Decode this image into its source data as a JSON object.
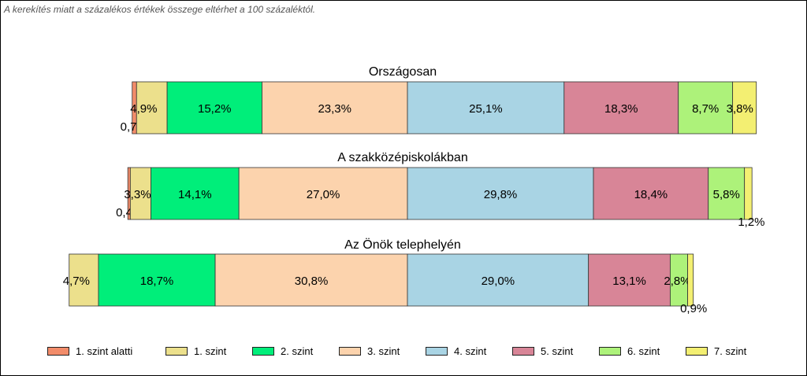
{
  "note": "A kerekítés miatt a  százalékos értékek összege eltérhet a 100 százaléktól.",
  "chart_data": {
    "type": "bar",
    "orientation": "horizontal-stacked",
    "categories": [
      "1. szint alatti",
      "1. szint",
      "2. szint",
      "3. szint",
      "4. szint",
      "5. szint",
      "6. szint",
      "7. szint"
    ],
    "colors": [
      "#f28c6a",
      "#ece08c",
      "#00ee7a",
      "#fcd3ad",
      "#a9d4e4",
      "#d88597",
      "#adf27a",
      "#f3ef72"
    ],
    "groups": [
      {
        "title": "Országosan",
        "values": [
          0.7,
          4.9,
          15.2,
          23.3,
          25.1,
          18.3,
          8.7,
          3.8
        ],
        "labels": [
          "0,7%",
          "4,9%",
          "15,2%",
          "23,3%",
          "25,1%",
          "18,3%",
          "8,7%",
          "3,8%"
        ]
      },
      {
        "title": "A szakközépiskolákban",
        "values": [
          0.4,
          3.3,
          14.1,
          27.0,
          29.8,
          18.4,
          5.8,
          1.2
        ],
        "labels": [
          "0,4%",
          "3,3%",
          "14,1%",
          "27,0%",
          "29,8%",
          "18,4%",
          "5,8%",
          "1,2%"
        ]
      },
      {
        "title": "Az Önök telephelyén",
        "values": [
          0.0,
          4.7,
          18.7,
          30.8,
          29.0,
          13.1,
          2.8,
          0.9
        ],
        "labels": [
          "",
          "4,7%",
          "18,7%",
          "30,8%",
          "29,0%",
          "13,1%",
          "2,8%",
          "0,9%"
        ]
      }
    ],
    "anchor": "boundary between 3. szint and 4. szint",
    "legend_position": "bottom",
    "grid": false
  }
}
